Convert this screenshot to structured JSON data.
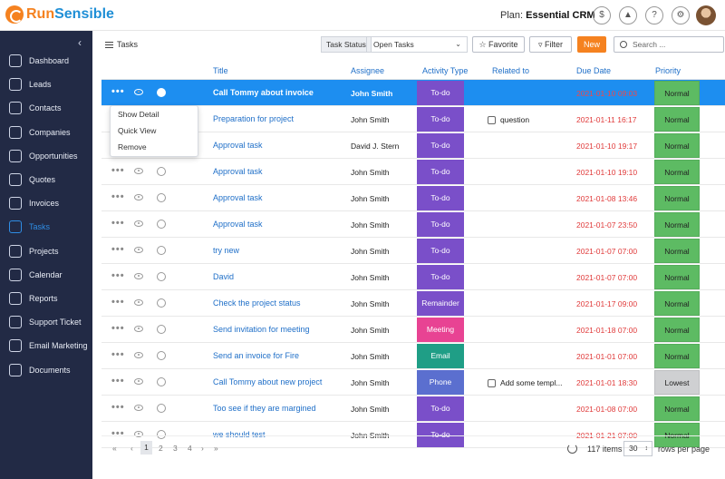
{
  "brand": {
    "part1": "Run",
    "part2": "Sensible"
  },
  "plan": {
    "label": "Plan:",
    "name": "Essential CRM"
  },
  "top_icons": [
    "dollar-icon",
    "rocket-icon",
    "help-icon",
    "gear-icon"
  ],
  "sidebar": {
    "items": [
      {
        "label": "Dashboard",
        "icon": "dashboard-icon"
      },
      {
        "label": "Leads",
        "icon": "leads-icon"
      },
      {
        "label": "Contacts",
        "icon": "contacts-icon"
      },
      {
        "label": "Companies",
        "icon": "companies-icon"
      },
      {
        "label": "Opportunities",
        "icon": "opportunities-icon"
      },
      {
        "label": "Quotes",
        "icon": "quotes-icon"
      },
      {
        "label": "Invoices",
        "icon": "invoices-icon"
      },
      {
        "label": "Tasks",
        "icon": "tasks-icon",
        "active": true
      },
      {
        "label": "Projects",
        "icon": "projects-icon"
      },
      {
        "label": "Calendar",
        "icon": "calendar-icon"
      },
      {
        "label": "Reports",
        "icon": "reports-icon"
      },
      {
        "label": "Support Ticket",
        "icon": "support-icon"
      },
      {
        "label": "Email Marketing",
        "icon": "email-icon"
      },
      {
        "label": "Documents",
        "icon": "documents-icon"
      }
    ]
  },
  "toolbar": {
    "page_title": "Tasks",
    "task_status_label": "Task Status",
    "task_status_value": "Open Tasks",
    "favorite_label": "Favorite",
    "filter_label": "Filter",
    "new_label": "New",
    "search_placeholder": "Search ..."
  },
  "table": {
    "columns": [
      "Title",
      "Assignee",
      "Activity Type",
      "Related to",
      "Due Date",
      "Priority"
    ],
    "rows": [
      {
        "title": "Call Tommy about invoice",
        "assignee": "John Smith",
        "activity": "To-do",
        "related": "",
        "due": "2021-01-10 09:03",
        "priority": "Normal"
      },
      {
        "title": "Preparation for project",
        "assignee": "John Smith",
        "activity": "To-do",
        "related": "question",
        "due": "2021-01-11 16:17",
        "priority": "Normal"
      },
      {
        "title": "Approval task",
        "assignee": "David J. Stern",
        "activity": "To-do",
        "related": "",
        "due": "2021-01-10 19:17",
        "priority": "Normal"
      },
      {
        "title": "Approval task",
        "assignee": "John Smith",
        "activity": "To-do",
        "related": "",
        "due": "2021-01-10 19:10",
        "priority": "Normal"
      },
      {
        "title": "Approval task",
        "assignee": "John Smith",
        "activity": "To-do",
        "related": "",
        "due": "2021-01-08 13:46",
        "priority": "Normal"
      },
      {
        "title": "Approval task",
        "assignee": "John Smith",
        "activity": "To-do",
        "related": "",
        "due": "2021-01-07 23:50",
        "priority": "Normal"
      },
      {
        "title": "try new",
        "assignee": "John Smith",
        "activity": "To-do",
        "related": "",
        "due": "2021-01-07 07:00",
        "priority": "Normal"
      },
      {
        "title": "David",
        "assignee": "John Smith",
        "activity": "To-do",
        "related": "",
        "due": "2021-01-07 07:00",
        "priority": "Normal"
      },
      {
        "title": "Check the project status",
        "assignee": "John Smith",
        "activity": "Remainder",
        "related": "",
        "due": "2021-01-17 09:00",
        "priority": "Normal"
      },
      {
        "title": "Send invitation for meeting",
        "assignee": "John Smith",
        "activity": "Meeting",
        "related": "",
        "due": "2021-01-18 07:00",
        "priority": "Normal"
      },
      {
        "title": "Send an invoice for Fire",
        "assignee": "John Smith",
        "activity": "Email",
        "related": "",
        "due": "2021-01-01 07:00",
        "priority": "Normal"
      },
      {
        "title": "Call Tommy about new project",
        "assignee": "John Smith",
        "activity": "Phone",
        "related": "Add some templ...",
        "due": "2021-01-01 18:30",
        "priority": "Lowest"
      },
      {
        "title": "Too see if they are margined",
        "assignee": "John Smith",
        "activity": "To-do",
        "related": "",
        "due": "2021-01-08 07:00",
        "priority": "Normal"
      },
      {
        "title": "we should test",
        "assignee": "John Smith",
        "activity": "To-do",
        "related": "",
        "due": "2021-01-21 07:00",
        "priority": "Normal"
      }
    ]
  },
  "context_menu": [
    "Show Detail",
    "Quick View",
    "Remove"
  ],
  "pager": {
    "first": "«",
    "prev": "‹",
    "pages": [
      "1",
      "2",
      "3",
      "4"
    ],
    "next": "›",
    "last": "»",
    "current": "1",
    "items": "117 items",
    "page_size": "30",
    "rows_per_page": "rows per page"
  },
  "colors": {
    "brand_orange": "#f58220",
    "brand_blue": "#1f8fd6",
    "sidebar_bg": "#222a45",
    "selected_row": "#1d8ef0",
    "todo": "#7a4fc9",
    "remainder": "#7a4fc9",
    "meeting": "#e84393",
    "email": "#1f9e86",
    "phone": "#5b6fcf",
    "priority_normal": "#5dbb63",
    "priority_lowest": "#cfd0d2"
  }
}
